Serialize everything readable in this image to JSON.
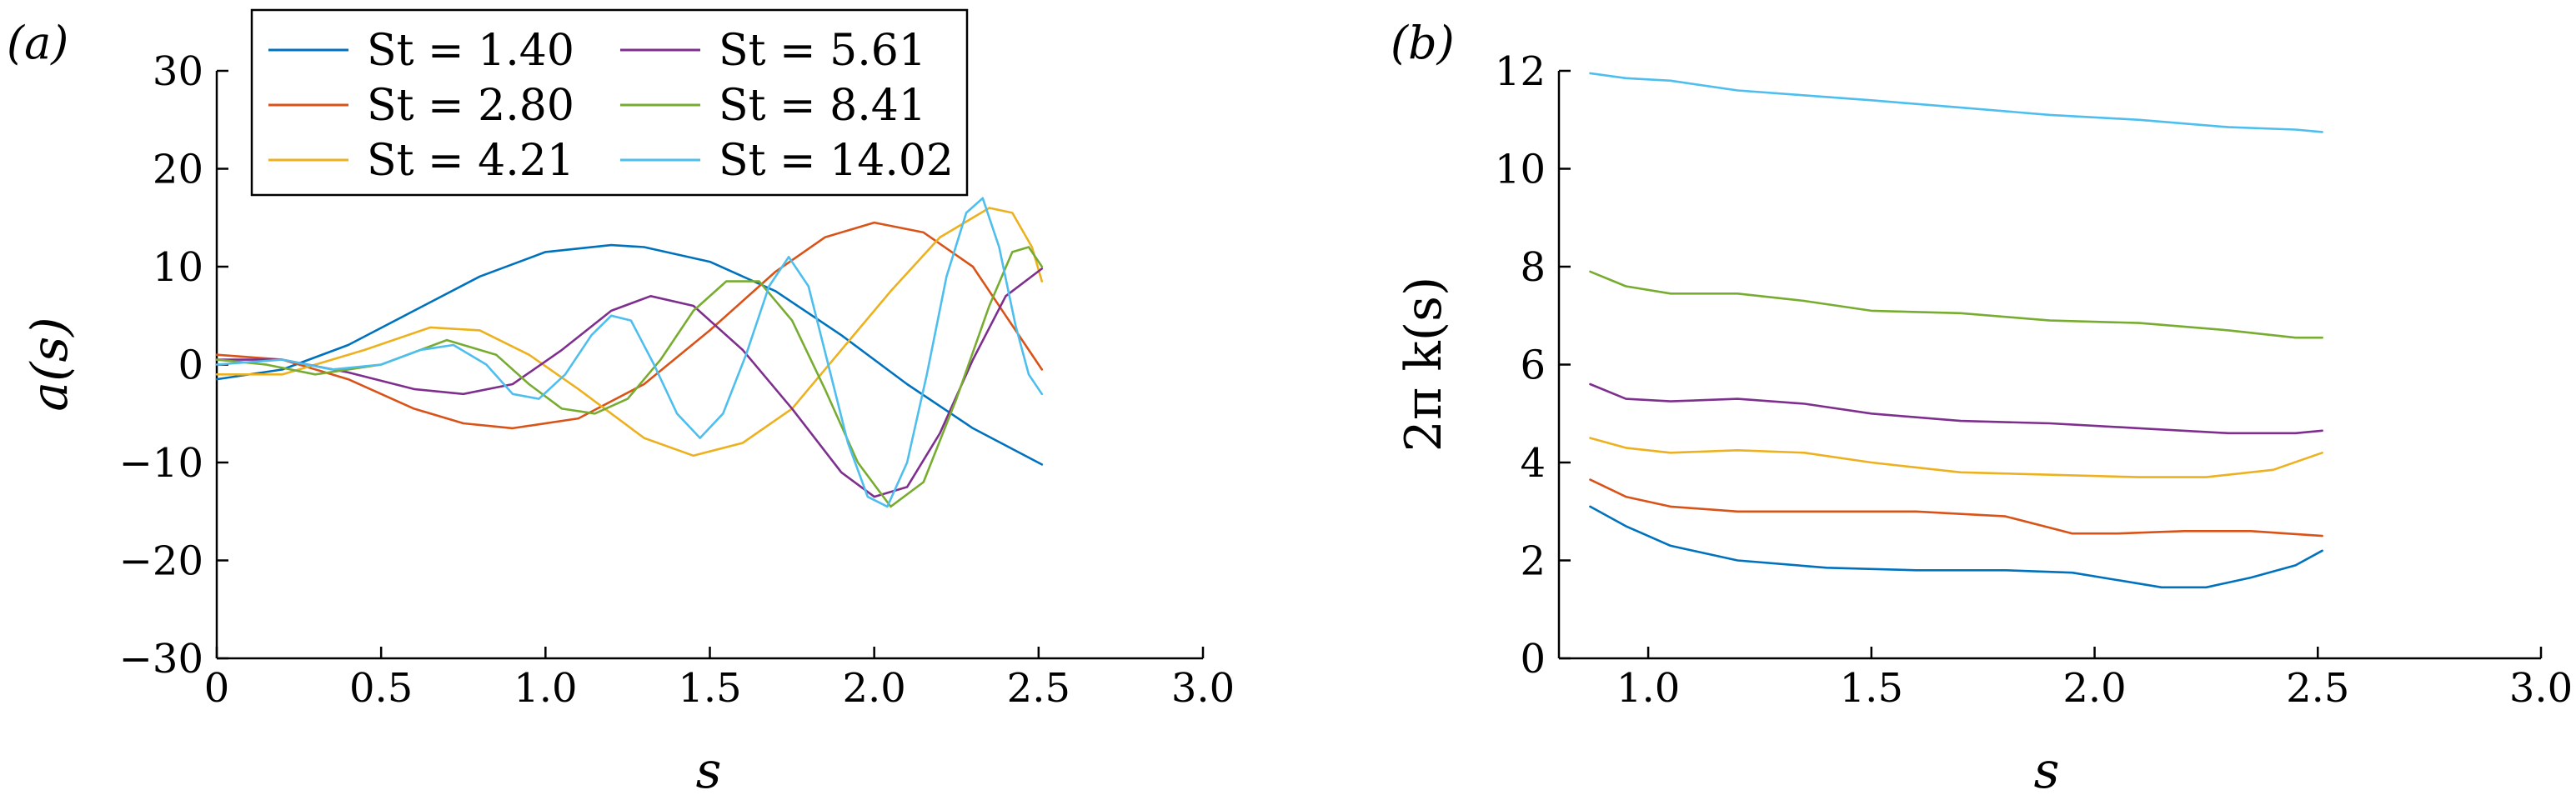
{
  "colors": [
    "#0072bd",
    "#d95319",
    "#edb120",
    "#7e2f8e",
    "#77ac30",
    "#4dbeee"
  ],
  "chart_data": [
    {
      "panel": "(a)",
      "type": "line",
      "xlabel": "s",
      "ylabel": "a(s)",
      "xlim": [
        0,
        3.0
      ],
      "ylim": [
        -30,
        30
      ],
      "xticks": [
        0,
        0.5,
        1.0,
        1.5,
        2.0,
        2.5,
        3.0
      ],
      "xtick_labels": [
        "0",
        "0.5",
        "1.0",
        "1.5",
        "2.0",
        "2.5",
        "3.0"
      ],
      "yticks": [
        -30,
        -20,
        -10,
        0,
        10,
        20,
        30
      ],
      "ytick_labels": [
        "−30",
        "−20",
        "−10",
        "0",
        "10",
        "20",
        "30"
      ],
      "legend": {
        "placement": "top-left",
        "columns": 2
      },
      "series": [
        {
          "name": "St = 1.40",
          "x": [
            0,
            0.2,
            0.4,
            0.6,
            0.8,
            1.0,
            1.2,
            1.3,
            1.5,
            1.7,
            1.9,
            2.1,
            2.3,
            2.51
          ],
          "y": [
            -1.5,
            -0.5,
            2,
            5.5,
            9,
            11.5,
            12.2,
            12,
            10.5,
            7.5,
            3,
            -2,
            -6.5,
            -10.2
          ]
        },
        {
          "name": "St = 2.80",
          "x": [
            0,
            0.2,
            0.4,
            0.6,
            0.75,
            0.9,
            1.1,
            1.3,
            1.5,
            1.7,
            1.85,
            2.0,
            2.15,
            2.3,
            2.4,
            2.51
          ],
          "y": [
            1,
            0.5,
            -1.5,
            -4.5,
            -6,
            -6.5,
            -5.5,
            -2,
            3.5,
            9.5,
            13,
            14.5,
            13.5,
            10,
            5,
            -0.5
          ]
        },
        {
          "name": "St = 4.21",
          "x": [
            0,
            0.2,
            0.45,
            0.65,
            0.8,
            0.95,
            1.1,
            1.3,
            1.45,
            1.6,
            1.75,
            1.9,
            2.05,
            2.2,
            2.35,
            2.42,
            2.48,
            2.51
          ],
          "y": [
            -1,
            -1,
            1.5,
            3.8,
            3.5,
            1,
            -2.5,
            -7.5,
            -9.3,
            -8,
            -4.5,
            1.5,
            7.5,
            13,
            16,
            15.5,
            12,
            8.5
          ]
        },
        {
          "name": "St = 5.61",
          "x": [
            0,
            0.2,
            0.4,
            0.6,
            0.75,
            0.9,
            1.05,
            1.2,
            1.32,
            1.45,
            1.6,
            1.75,
            1.9,
            2.0,
            2.1,
            2.2,
            2.3,
            2.4,
            2.51
          ],
          "y": [
            0.5,
            0.5,
            -0.8,
            -2.5,
            -3,
            -2,
            1.5,
            5.5,
            7,
            6,
            1.5,
            -4.5,
            -11,
            -13.5,
            -12.5,
            -7,
            0.5,
            7,
            9.8
          ]
        },
        {
          "name": "St = 8.41",
          "x": [
            0,
            0.15,
            0.3,
            0.5,
            0.7,
            0.85,
            0.95,
            1.05,
            1.15,
            1.25,
            1.35,
            1.45,
            1.55,
            1.65,
            1.75,
            1.85,
            1.95,
            2.05,
            2.15,
            2.25,
            2.35,
            2.42,
            2.47,
            2.51
          ],
          "y": [
            0.5,
            0,
            -1,
            0,
            2.5,
            1,
            -2,
            -4.5,
            -5,
            -3.5,
            0.5,
            5.5,
            8.5,
            8.5,
            4.5,
            -2.5,
            -10,
            -14.5,
            -12,
            -3.5,
            6,
            11.5,
            12,
            10
          ]
        },
        {
          "name": "St = 14.02",
          "x": [
            0,
            0.2,
            0.35,
            0.5,
            0.62,
            0.72,
            0.82,
            0.9,
            0.98,
            1.06,
            1.14,
            1.2,
            1.26,
            1.33,
            1.4,
            1.47,
            1.54,
            1.61,
            1.68,
            1.74,
            1.8,
            1.86,
            1.92,
            1.98,
            2.04,
            2.1,
            2.16,
            2.22,
            2.28,
            2.33,
            2.38,
            2.43,
            2.47,
            2.51
          ],
          "y": [
            0,
            0.5,
            -0.5,
            0,
            1.5,
            2,
            0,
            -3,
            -3.5,
            -1,
            3,
            5,
            4.5,
            0,
            -5,
            -7.5,
            -5,
            1,
            8,
            11,
            8,
            0,
            -8,
            -13.5,
            -14.5,
            -10,
            -1,
            9,
            15.5,
            17,
            12,
            4,
            -1,
            -3
          ]
        }
      ]
    },
    {
      "panel": "(b)",
      "type": "line",
      "xlabel": "s",
      "ylabel": "2π k(s)",
      "xlim": [
        0.8,
        3.0
      ],
      "ylim": [
        0,
        12
      ],
      "xticks": [
        1.0,
        1.5,
        2.0,
        2.5,
        3.0
      ],
      "xtick_labels": [
        "1.0",
        "1.5",
        "2.0",
        "2.5",
        "3.0"
      ],
      "yticks": [
        0,
        2,
        4,
        6,
        8,
        10,
        12
      ],
      "ytick_labels": [
        "0",
        "2",
        "4",
        "6",
        "8",
        "10",
        "12"
      ],
      "series": [
        {
          "name": "St = 1.40",
          "x": [
            0.87,
            0.95,
            1.05,
            1.2,
            1.4,
            1.6,
            1.8,
            1.95,
            2.05,
            2.15,
            2.25,
            2.35,
            2.45,
            2.51
          ],
          "y": [
            3.1,
            2.7,
            2.3,
            2.0,
            1.85,
            1.8,
            1.8,
            1.75,
            1.6,
            1.45,
            1.45,
            1.65,
            1.9,
            2.2
          ]
        },
        {
          "name": "St = 2.80",
          "x": [
            0.87,
            0.95,
            1.05,
            1.2,
            1.4,
            1.6,
            1.8,
            1.95,
            2.05,
            2.2,
            2.35,
            2.51
          ],
          "y": [
            3.65,
            3.3,
            3.1,
            3.0,
            3.0,
            3.0,
            2.9,
            2.55,
            2.55,
            2.6,
            2.6,
            2.5
          ]
        },
        {
          "name": "St = 4.21",
          "x": [
            0.87,
            0.95,
            1.05,
            1.2,
            1.35,
            1.5,
            1.7,
            1.9,
            2.1,
            2.25,
            2.4,
            2.51
          ],
          "y": [
            4.5,
            4.3,
            4.2,
            4.25,
            4.2,
            4.0,
            3.8,
            3.75,
            3.7,
            3.7,
            3.85,
            4.2
          ]
        },
        {
          "name": "St = 5.61",
          "x": [
            0.87,
            0.95,
            1.05,
            1.2,
            1.35,
            1.5,
            1.7,
            1.9,
            2.1,
            2.3,
            2.45,
            2.51
          ],
          "y": [
            5.6,
            5.3,
            5.25,
            5.3,
            5.2,
            5.0,
            4.85,
            4.8,
            4.7,
            4.6,
            4.6,
            4.65
          ]
        },
        {
          "name": "St = 8.41",
          "x": [
            0.87,
            0.95,
            1.05,
            1.2,
            1.35,
            1.5,
            1.7,
            1.9,
            2.1,
            2.3,
            2.45,
            2.51
          ],
          "y": [
            7.9,
            7.6,
            7.45,
            7.45,
            7.3,
            7.1,
            7.05,
            6.9,
            6.85,
            6.7,
            6.55,
            6.55
          ]
        },
        {
          "name": "St = 14.02",
          "x": [
            0.87,
            0.95,
            1.05,
            1.2,
            1.35,
            1.5,
            1.7,
            1.9,
            2.1,
            2.3,
            2.45,
            2.51
          ],
          "y": [
            11.95,
            11.85,
            11.8,
            11.6,
            11.5,
            11.4,
            11.25,
            11.1,
            11.0,
            10.85,
            10.8,
            10.75
          ]
        }
      ]
    }
  ]
}
